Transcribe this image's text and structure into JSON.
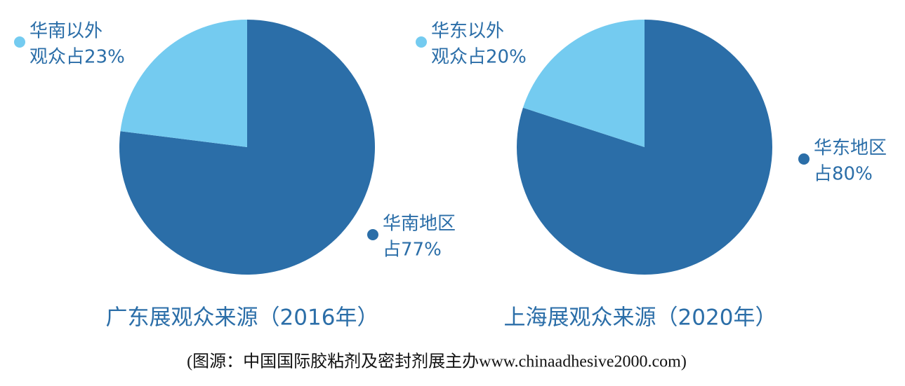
{
  "chart_data": [
    {
      "type": "pie",
      "title": "广东展观众来源（2016年）",
      "categories": [
        "华南地区",
        "华南以外"
      ],
      "values": [
        77,
        23
      ],
      "value_labels": [
        "占77%",
        "观众占23%"
      ],
      "colors": [
        "#2b6ea8",
        "#74cbf0"
      ]
    },
    {
      "type": "pie",
      "title": "上海展观众来源（2020年）",
      "categories": [
        "华东地区",
        "华东以外"
      ],
      "values": [
        80,
        20
      ],
      "value_labels": [
        "占80%",
        "观众占20%"
      ],
      "colors": [
        "#2b6ea8",
        "#74cbf0"
      ]
    }
  ],
  "source": "(图源：中国国际胶粘剂及密封剂展主办www.chinaadhesive2000.com)"
}
